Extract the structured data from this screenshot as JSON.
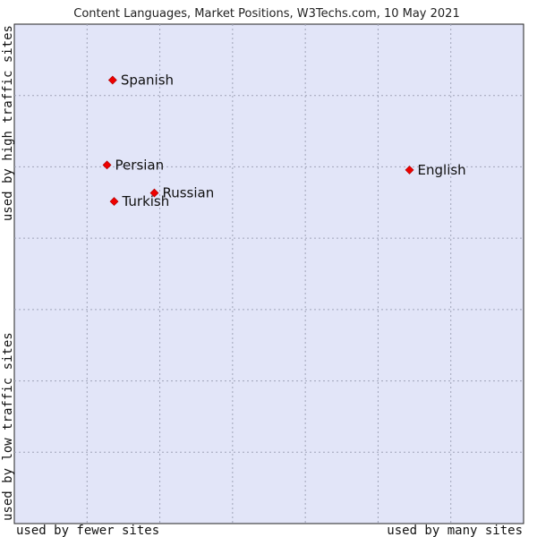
{
  "chart_data": {
    "type": "scatter",
    "title": "Content Languages, Market Positions, W3Techs.com, 10 May 2021",
    "x_axis": {
      "left_label": "used by fewer sites",
      "right_label": "used by many sites",
      "range": [
        0,
        100
      ]
    },
    "y_axis": {
      "bottom_label": "used by low traffic sites",
      "top_label": "used by high traffic sites",
      "range": [
        0,
        100
      ]
    },
    "grid": true,
    "colors": {
      "plot_background": "#e2e5f8",
      "grid": "#a0a4b8",
      "point": "#ee0000"
    },
    "points": [
      {
        "name": "Spanish",
        "x": 19.3,
        "y": 88.8
      },
      {
        "name": "Persian",
        "x": 18.2,
        "y": 71.8
      },
      {
        "name": "Russian",
        "x": 27.5,
        "y": 66.2
      },
      {
        "name": "Turkish",
        "x": 19.6,
        "y": 64.5
      },
      {
        "name": "English",
        "x": 77.6,
        "y": 70.8
      }
    ]
  }
}
